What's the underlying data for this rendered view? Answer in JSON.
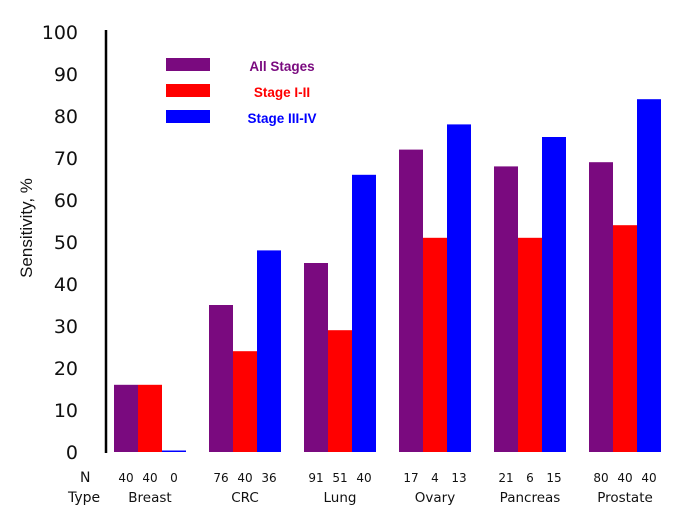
{
  "chart_data": {
    "type": "bar",
    "title": "",
    "xlabel": "",
    "ylabel": "Sensitivity, %",
    "ylim": [
      0,
      100
    ],
    "yticks": [
      "0",
      "10",
      "20",
      "30",
      "40",
      "50",
      "60",
      "70",
      "80",
      "90",
      "100"
    ],
    "categories": [
      "Breast",
      "CRC",
      "Lung",
      "Ovary",
      "Pancreas",
      "Prostate"
    ],
    "series": [
      {
        "name": "All Stages",
        "color": "#7a0a7f",
        "values": [
          16,
          35,
          45,
          72,
          68,
          69
        ]
      },
      {
        "name": "Stage I-II",
        "color": "#ff0000",
        "values": [
          16,
          24,
          29,
          51,
          51,
          54
        ]
      },
      {
        "name": "Stage III-IV",
        "color": "#0000ff",
        "values": [
          0,
          48,
          66,
          78,
          75,
          84
        ]
      }
    ],
    "n_row_label": "N",
    "type_row_label": "Type",
    "n_values": [
      [
        "40",
        "40",
        "0"
      ],
      [
        "76",
        "40",
        "36"
      ],
      [
        "91",
        "51",
        "40"
      ],
      [
        "17",
        "4",
        "13"
      ],
      [
        "21",
        "6",
        "15"
      ],
      [
        "80",
        "40",
        "40"
      ]
    ],
    "legend_position": "top-left",
    "legend_text_colors": [
      "#7a0a7f",
      "#ff0000",
      "#0000ff"
    ],
    "grid": false
  }
}
